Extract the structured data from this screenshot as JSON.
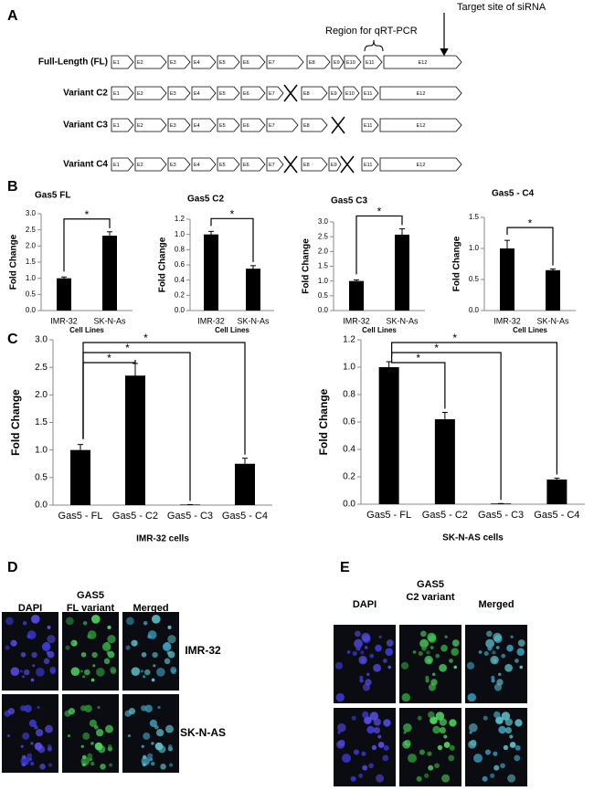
{
  "panels": [
    "A",
    "B",
    "C",
    "D",
    "E"
  ],
  "diagram": {
    "annotations": [
      "Target site of siRNA",
      "Region for qRT-PCR"
    ],
    "rows": [
      {
        "label": "Full-Length (FL)",
        "exons": [
          "E1",
          "E2",
          "E3",
          "E4",
          "E5",
          "E6",
          "E7",
          "E8",
          "E9",
          "E10",
          "E11",
          "E12"
        ]
      },
      {
        "label": "Variant C2",
        "exons": [
          "E1",
          "E2",
          "E3",
          "E4",
          "E5",
          "E6",
          "E7",
          null,
          "E8",
          "E9",
          "E10",
          "E11",
          "E12"
        ]
      },
      {
        "label": "Variant C3",
        "exons": [
          "E1",
          "E2",
          "E3",
          "E4",
          "E5",
          "E6",
          "E7",
          "E8",
          null,
          "E11",
          "E12"
        ]
      },
      {
        "label": "Variant C4",
        "exons": [
          "E1",
          "E2",
          "E3",
          "E4",
          "E5",
          "E6",
          "E7",
          null,
          "E8",
          "E9",
          null,
          "E11",
          "E12"
        ]
      }
    ]
  },
  "chart_data": [
    {
      "type": "bar",
      "title": "Gas5 FL",
      "ylabel": "Fold Change",
      "xlabel": "Cell Lines",
      "color": "#000000",
      "categories": [
        "IMR-32",
        "SK-N-As"
      ],
      "values": [
        1.0,
        2.32
      ],
      "errors": [
        0.04,
        0.12
      ],
      "ylim": [
        0,
        3
      ],
      "yticks": [
        {
          "value": 0,
          "label": "0.0"
        },
        0.5,
        {
          "value": 1,
          "label": "1.0"
        },
        1.5,
        {
          "value": 2,
          "label": "2.0"
        },
        2.5,
        {
          "value": 3,
          "label": "3.0"
        }
      ],
      "significance": [
        "*"
      ]
    },
    {
      "type": "bar",
      "title": "Gas5 C2",
      "ylabel": "Fold Change",
      "xlabel": "Cell Lines",
      "color": "#000000",
      "categories": [
        "IMR-32",
        "SK-N-As"
      ],
      "values": [
        1.0,
        0.55
      ],
      "errors": [
        0.04,
        0.04
      ],
      "ylim": [
        0,
        1.2
      ],
      "yticks": [
        {
          "value": 0,
          "label": "0.0"
        },
        0.2,
        0.4,
        0.6,
        0.8,
        {
          "value": 1,
          "label": "1.0"
        },
        1.2
      ],
      "significance": [
        "*"
      ]
    },
    {
      "type": "bar",
      "title": "Gas5 C3",
      "ylabel": "Fold Change",
      "xlabel": "Cell Lines",
      "color": "#000000",
      "categories": [
        "IMR-32",
        "SK-N-As"
      ],
      "values": [
        1.0,
        2.57
      ],
      "errors": [
        0.04,
        0.2
      ],
      "ylim": [
        0,
        3
      ],
      "yticks": [
        {
          "value": 0,
          "label": "0.0"
        },
        0.5,
        {
          "value": 1,
          "label": "1.0"
        },
        1.5,
        {
          "value": 2,
          "label": "2.0"
        },
        2.5,
        {
          "value": 3,
          "label": "3.0"
        }
      ],
      "significance": [
        "*"
      ]
    },
    {
      "type": "bar",
      "title": "Gas5 - C4",
      "ylabel": "Fold Change",
      "xlabel": "Cell Lines",
      "color": "#000000",
      "categories": [
        "IMR-32",
        "SK-N-As"
      ],
      "values": [
        1.0,
        0.65
      ],
      "errors": [
        0.13,
        0.02
      ],
      "ylim": [
        0,
        1.5
      ],
      "yticks": [
        {
          "value": 0,
          "label": "0.0"
        },
        0.5,
        {
          "value": 1,
          "label": "1.0"
        },
        1.5
      ],
      "significance": [
        "*"
      ]
    },
    {
      "type": "bar",
      "ylabel": "Fold Change",
      "xlabel": "IMR-32 cells",
      "color": "#000000",
      "categories": [
        "Gas5 - FL",
        "Gas5 - C2",
        "Gas5 - C3",
        "Gas5 - C4"
      ],
      "values": [
        1.0,
        2.35,
        0.01,
        0.75
      ],
      "errors": [
        0.1,
        0.22,
        0.0,
        0.1
      ],
      "ylim": [
        0,
        3
      ],
      "yticks": [
        {
          "value": 0,
          "label": "0.0"
        },
        0.5,
        {
          "value": 1,
          "label": "1.0"
        },
        1.5,
        {
          "value": 2,
          "label": "2.0"
        },
        2.5,
        {
          "value": 3,
          "label": "3.0"
        }
      ],
      "significance": [
        "*",
        "*",
        "*"
      ]
    },
    {
      "type": "bar",
      "ylabel": "Fold Change",
      "xlabel": "SK-N-AS cells",
      "color": "#000000",
      "categories": [
        "Gas5 - FL",
        "Gas5 - C2",
        "Gas5 - C3",
        "Gas5 - C4"
      ],
      "values": [
        1.0,
        0.62,
        0.005,
        0.18
      ],
      "errors": [
        0.04,
        0.05,
        0.0,
        0.01
      ],
      "ylim": [
        0,
        1.2
      ],
      "yticks": [
        {
          "value": 0,
          "label": "0.0"
        },
        0.2,
        0.4,
        0.6,
        0.8,
        {
          "value": 1,
          "label": "1.0"
        },
        1.2
      ],
      "significance": [
        "*",
        "*",
        "*"
      ]
    }
  ],
  "microscopy": [
    {
      "columns": [
        [
          "DAPI"
        ],
        [
          "GAS5",
          "FL variant"
        ],
        [
          "Merged"
        ]
      ],
      "rows": [
        "IMR-32",
        "SK-N-AS"
      ]
    },
    {
      "columns": [
        [
          "DAPI"
        ],
        [
          "GAS5",
          "C2 variant"
        ],
        [
          "Merged"
        ]
      ]
    }
  ]
}
